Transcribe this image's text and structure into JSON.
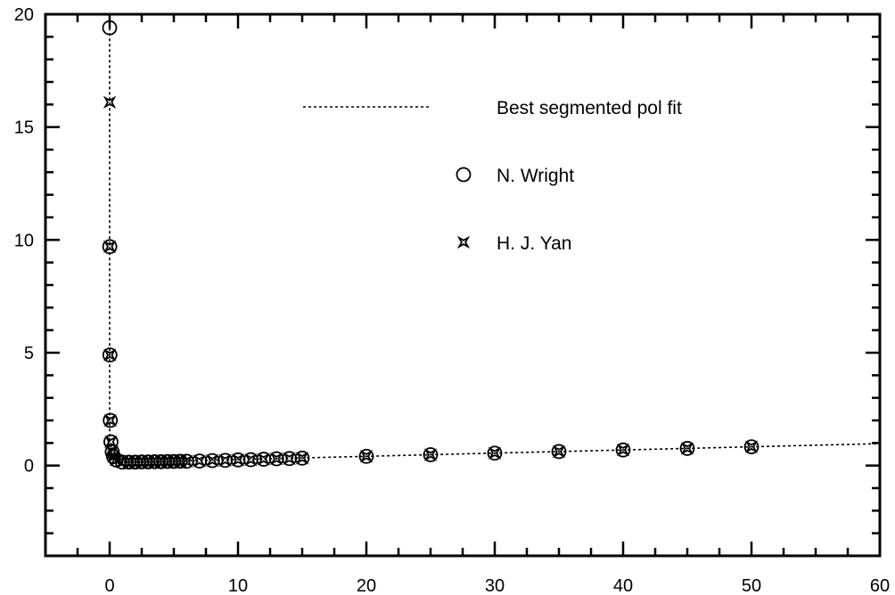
{
  "chart_data": {
    "type": "scatter",
    "title": "",
    "xlabel": "",
    "ylabel": "",
    "xlim": [
      -5,
      60
    ],
    "ylim": [
      -4,
      20
    ],
    "grid": false,
    "legend_placement": "top-right",
    "x_ticks": [
      0,
      10,
      20,
      30,
      40,
      50,
      60
    ],
    "y_ticks": [
      0,
      5,
      10,
      15,
      20
    ],
    "x_tick_labels": [
      "0",
      "10",
      "20",
      "30",
      "40",
      "50",
      "60"
    ],
    "y_tick_labels": [
      "0",
      "5",
      "10",
      "15",
      "20"
    ],
    "fit_label": "Best segmented pol fit",
    "fit_line": {
      "x": [
        0.0,
        0.0,
        0.0,
        0.0,
        0.0,
        0.3,
        1,
        2,
        5,
        10,
        15,
        20,
        30,
        40,
        50,
        60
      ],
      "y": [
        19.4,
        9.7,
        4.9,
        2.0,
        1.1,
        0.3,
        0.15,
        0.16,
        0.2,
        0.27,
        0.34,
        0.41,
        0.55,
        0.69,
        0.83,
        0.97
      ]
    },
    "series": [
      {
        "name": "N. Wright",
        "marker": "open-circle",
        "x": [
          0.001,
          0.01,
          0.02,
          0.05,
          0.1,
          0.2,
          0.3,
          0.5,
          1,
          1.5,
          2,
          2.5,
          3,
          3.5,
          4,
          4.5,
          5,
          5.5,
          6,
          7,
          8,
          9,
          10,
          11,
          12,
          13,
          14,
          15,
          20,
          25,
          30,
          35,
          40,
          45,
          50
        ],
        "y": [
          19.4,
          9.7,
          4.9,
          2.0,
          1.05,
          0.6,
          0.4,
          0.25,
          0.15,
          0.15,
          0.15,
          0.16,
          0.16,
          0.17,
          0.17,
          0.18,
          0.18,
          0.19,
          0.19,
          0.2,
          0.22,
          0.23,
          0.25,
          0.26,
          0.28,
          0.3,
          0.31,
          0.33,
          0.41,
          0.48,
          0.55,
          0.62,
          0.69,
          0.76,
          0.83
        ]
      },
      {
        "name": "H. J. Yan",
        "marker": "star",
        "x": [
          0.005,
          0.01,
          0.02,
          0.05,
          0.1,
          0.2,
          0.3,
          0.5,
          1,
          1.5,
          2,
          2.5,
          3,
          3.5,
          4,
          4.5,
          5,
          5.5,
          6,
          7,
          8,
          9,
          10,
          11,
          12,
          13,
          14,
          15,
          20,
          25,
          30,
          35,
          40,
          45,
          50
        ],
        "y": [
          16.1,
          9.7,
          4.9,
          2.0,
          1.05,
          0.6,
          0.4,
          0.25,
          0.15,
          0.15,
          0.15,
          0.16,
          0.16,
          0.17,
          0.17,
          0.18,
          0.18,
          0.19,
          0.19,
          0.2,
          0.22,
          0.23,
          0.25,
          0.26,
          0.28,
          0.3,
          0.31,
          0.33,
          0.41,
          0.48,
          0.55,
          0.62,
          0.69,
          0.76,
          0.83
        ]
      }
    ]
  }
}
